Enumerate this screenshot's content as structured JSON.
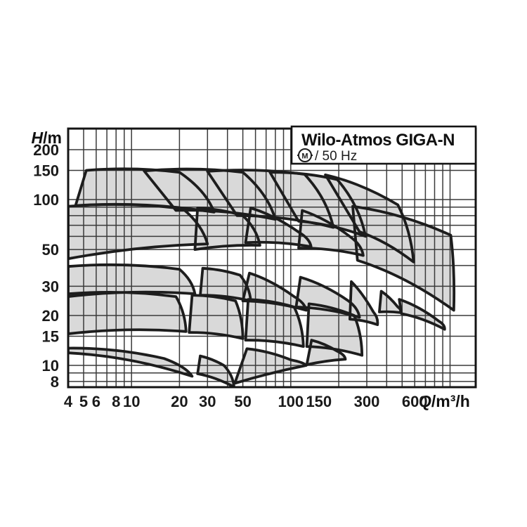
{
  "chart_data": {
    "type": "area",
    "title": "Wilo-Atmos GIGA-N",
    "motor_symbol": "M",
    "frequency_label": "/ 50 Hz",
    "ylabel_symbol": "H",
    "ylabel_unit": "/m",
    "xlabel_symbol": "Q",
    "xlabel_unit": "/m³/h",
    "x_scale": "log",
    "y_scale": "log",
    "xlim": [
      4,
      1449
    ],
    "ylim": [
      7.39,
      268
    ],
    "x_ticks": [
      {
        "value": 4,
        "label": "4"
      },
      {
        "value": 5,
        "label": "5"
      },
      {
        "value": 6,
        "label": "6"
      },
      {
        "value": 8,
        "label": "8"
      },
      {
        "value": 10,
        "label": "10"
      },
      {
        "value": 20,
        "label": "20"
      },
      {
        "value": 30,
        "label": "30"
      },
      {
        "value": 50,
        "label": "50"
      },
      {
        "value": 100,
        "label": "100"
      },
      {
        "value": 150,
        "label": "150"
      },
      {
        "value": 300,
        "label": "300"
      },
      {
        "value": 600,
        "label": "600"
      }
    ],
    "y_ticks": [
      {
        "value": 200,
        "label": "200"
      },
      {
        "value": 150,
        "label": "150"
      },
      {
        "value": 100,
        "label": "100"
      },
      {
        "value": 50,
        "label": "50"
      },
      {
        "value": 30,
        "label": "30"
      },
      {
        "value": 20,
        "label": "20"
      },
      {
        "value": 15,
        "label": "15"
      },
      {
        "value": 10,
        "label": "10"
      },
      {
        "value": 8,
        "label": "8"
      }
    ],
    "x_gridlines": [
      4,
      5,
      6,
      7,
      8,
      9,
      10,
      20,
      30,
      40,
      50,
      60,
      70,
      80,
      90,
      100,
      200,
      300,
      400,
      500,
      600,
      700,
      800,
      900,
      1000
    ],
    "y_gridlines": [
      8,
      9,
      10,
      15,
      20,
      30,
      40,
      50,
      60,
      70,
      80,
      90,
      100,
      150,
      200
    ],
    "grid": true,
    "legend": false,
    "envelopes": [
      {
        "name": "r1p1",
        "tl": [
          5.2,
          150
        ],
        "tr": [
          20,
          146
        ],
        "br": [
          33,
          84
        ],
        "bl": [
          4.45,
          92
        ]
      },
      {
        "name": "r1p2",
        "tl": [
          12,
          149
        ],
        "tr": [
          50,
          146
        ],
        "br": [
          80,
          76
        ],
        "bl": [
          19,
          86
        ]
      },
      {
        "name": "r1p3",
        "tl": [
          30,
          148
        ],
        "tr": [
          122,
          142
        ],
        "br": [
          185,
          68
        ],
        "bl": [
          46,
          80
        ]
      },
      {
        "name": "r1p4",
        "tl": [
          74,
          146
        ],
        "tr": [
          196,
          132
        ],
        "br": [
          295,
          60
        ],
        "bl": [
          112,
          74
        ]
      },
      {
        "name": "r1p5",
        "tl": [
          165,
          141
        ],
        "tr": [
          470,
          93
        ],
        "br": [
          590,
          42
        ],
        "bl": [
          270,
          64
        ]
      },
      {
        "name": "r2p1",
        "tl": [
          4,
          91
        ],
        "tr": [
          21,
          88
        ],
        "br": [
          30,
          54
        ],
        "bl": [
          4,
          44
        ]
      },
      {
        "name": "r2p2",
        "tl": [
          26,
          89
        ],
        "tr": [
          50,
          80
        ],
        "br": [
          64,
          53
        ],
        "bl": [
          25,
          50
        ]
      },
      {
        "name": "r2p3",
        "tl": [
          56,
          89
        ],
        "tr": [
          114,
          63
        ],
        "br": [
          134,
          52
        ],
        "bl": [
          52,
          55
        ]
      },
      {
        "name": "r2p4",
        "tl": [
          118,
          86
        ],
        "tr": [
          240,
          59
        ],
        "br": [
          285,
          46
        ],
        "bl": [
          112,
          51
        ]
      },
      {
        "name": "r2p5",
        "tl": [
          245,
          91
        ],
        "tr": [
          1010,
          61
        ],
        "br": [
          1055,
          21.5
        ],
        "bl": [
          262,
          43
        ]
      },
      {
        "name": "r3p1",
        "tl": [
          4,
          39.5
        ],
        "tr": [
          20,
          38
        ],
        "br": [
          25,
          27
        ],
        "bl": [
          4,
          26
        ]
      },
      {
        "name": "r3p2",
        "tl": [
          28,
          38.5
        ],
        "tr": [
          48,
          35
        ],
        "br": [
          56,
          24.5
        ],
        "bl": [
          27,
          26.5
        ]
      },
      {
        "name": "r3p3",
        "tl": [
          55,
          36
        ],
        "tr": [
          105,
          26
        ],
        "br": [
          125,
          21.5
        ],
        "bl": [
          50,
          24.5
        ]
      },
      {
        "name": "r3p4",
        "tl": [
          115,
          34
        ],
        "tr": [
          230,
          24.5
        ],
        "br": [
          270,
          19.5
        ],
        "bl": [
          108,
          22.5
        ]
      },
      {
        "name": "r3p5",
        "tl": [
          240,
          32
        ],
        "tr": [
          330,
          21
        ],
        "br": [
          350,
          17.6
        ],
        "bl": [
          235,
          19
        ]
      },
      {
        "name": "r3p6",
        "tl": [
          370,
          28
        ],
        "tr": [
          470,
          22.5
        ],
        "br": [
          487,
          20.8
        ],
        "bl": [
          360,
          21
        ]
      },
      {
        "name": "r4p1",
        "tl": [
          4,
          27
        ],
        "tr": [
          19,
          26
        ],
        "br": [
          22,
          16
        ],
        "bl": [
          4,
          15.5
        ]
      },
      {
        "name": "r4p2",
        "tl": [
          24,
          26.5
        ],
        "tr": [
          45,
          24.5
        ],
        "br": [
          50,
          14.5
        ],
        "bl": [
          23,
          15.8
        ]
      },
      {
        "name": "r4p3",
        "tl": [
          54,
          25
        ],
        "tr": [
          105,
          22.5
        ],
        "br": [
          120,
          13
        ],
        "bl": [
          52,
          14.2
        ]
      },
      {
        "name": "r4p4",
        "tl": [
          130,
          23.5
        ],
        "tr": [
          250,
          20
        ],
        "br": [
          280,
          11.5
        ],
        "bl": [
          126,
          13
        ]
      },
      {
        "name": "r4p5",
        "tl": [
          480,
          25
        ],
        "tr": [
          850,
          18.5
        ],
        "br": [
          925,
          16.5
        ],
        "bl": [
          495,
          20.5
        ]
      },
      {
        "name": "r5p1",
        "tl": [
          4,
          12.7
        ],
        "tr": [
          16,
          11
        ],
        "br": [
          24,
          8.6
        ],
        "bl": [
          4,
          11.9
        ]
      },
      {
        "name": "r5p2",
        "tl": [
          27,
          11.4
        ],
        "tr": [
          38,
          10
        ],
        "br": [
          44,
          7.42
        ],
        "bl": [
          26,
          8.9
        ]
      },
      {
        "name": "r5p3",
        "tl": [
          53,
          12.6
        ],
        "tr": [
          100,
          10.8
        ],
        "br": [
          125,
          10.0
        ],
        "bl": [
          44.5,
          7.8
        ]
      },
      {
        "name": "r5p4",
        "tl": [
          135,
          14.2
        ],
        "tr": [
          195,
          12.2
        ],
        "br": [
          220,
          10.9
        ],
        "bl": [
          126,
          10.1
        ]
      }
    ],
    "colors": {
      "background": "#ffffff",
      "envelope_fill": "#d9d9d9",
      "envelope_stroke": "#1d1d1d",
      "grid": "#3a3a3a",
      "border": "#141414",
      "text": "#1a1a1a"
    }
  }
}
